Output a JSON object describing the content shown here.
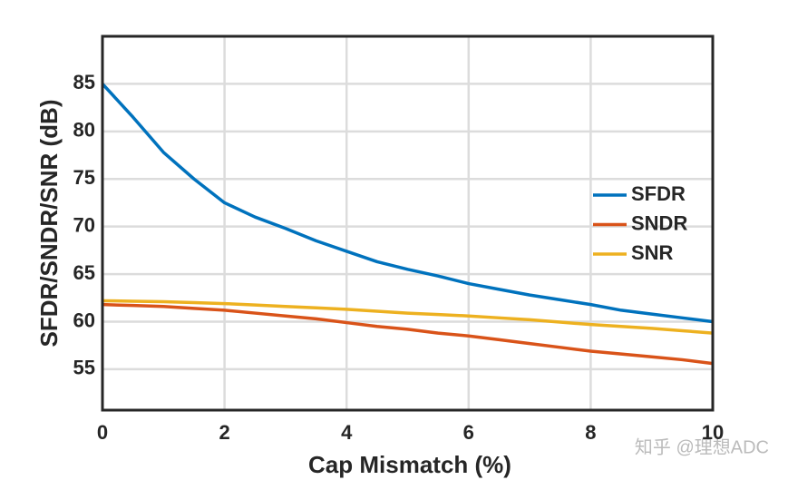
{
  "chart_data": {
    "type": "line",
    "x_label": "Cap Mismatch (%)",
    "y_label": "SFDR/SNDR/SNR (dB)",
    "x": [
      0,
      0.5,
      1,
      1.5,
      2,
      2.5,
      3,
      3.5,
      4,
      4.5,
      5,
      5.5,
      6,
      6.5,
      7,
      7.5,
      8,
      8.5,
      9,
      9.5,
      10
    ],
    "series": [
      {
        "name": "SFDR",
        "color": "#0072bd",
        "values": [
          85,
          81.5,
          77.8,
          75,
          72.5,
          71,
          69.8,
          68.5,
          67.4,
          66.3,
          65.5,
          64.8,
          64,
          63.4,
          62.8,
          62.3,
          61.8,
          61.2,
          60.8,
          60.4,
          60
        ]
      },
      {
        "name": "SNDR",
        "color": "#d95319",
        "values": [
          61.8,
          61.7,
          61.6,
          61.4,
          61.2,
          60.9,
          60.6,
          60.3,
          59.9,
          59.5,
          59.2,
          58.8,
          58.5,
          58.1,
          57.7,
          57.3,
          56.9,
          56.6,
          56.3,
          56,
          55.6
        ]
      },
      {
        "name": "SNR",
        "color": "#edb120",
        "values": [
          62.2,
          62.15,
          62.1,
          62.0,
          61.9,
          61.75,
          61.6,
          61.45,
          61.3,
          61.1,
          60.9,
          60.75,
          60.6,
          60.4,
          60.2,
          59.95,
          59.7,
          59.5,
          59.3,
          59.05,
          58.8
        ]
      }
    ],
    "xlim": [
      0,
      10
    ],
    "xticks": [
      0,
      2,
      4,
      6,
      8,
      10
    ],
    "ylim": [
      50.7,
      90
    ],
    "yticks": [
      55,
      60,
      65,
      70,
      75,
      80,
      85
    ],
    "grid": true,
    "legend": "right",
    "watermark": "知乎 @理想ADC"
  }
}
